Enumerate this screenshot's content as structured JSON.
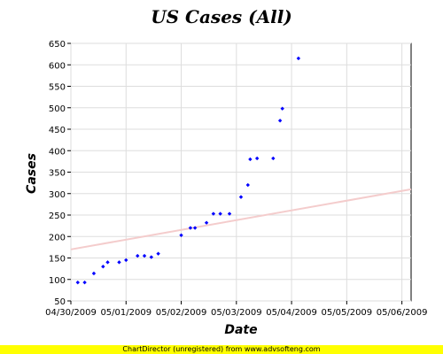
{
  "chart_data": {
    "type": "scatter",
    "title": "US Cases (All)",
    "xlabel": "Date",
    "ylabel": "Cases",
    "x_tick_labels": [
      "04/30/2009",
      "05/01/2009",
      "05/02/2009",
      "05/03/2009",
      "05/04/2009",
      "05/05/2009",
      "05/06/2009"
    ],
    "xlim": [
      "04/30/2009 00:00",
      "05/06/2009 04:00"
    ],
    "ylim": [
      50,
      650
    ],
    "y_ticks": [
      50,
      100,
      150,
      200,
      250,
      300,
      350,
      400,
      450,
      500,
      550,
      600,
      650
    ],
    "grid": true,
    "marker_color": "#0000ff",
    "trendline": {
      "color": "#f4cccc",
      "y_at_start": 170,
      "y_at_end": 310
    },
    "series": [
      {
        "points": [
          {
            "x": "04/30/2009 03:00",
            "y": 93
          },
          {
            "x": "04/30/2009 06:00",
            "y": 93
          },
          {
            "x": "04/30/2009 10:00",
            "y": 114
          },
          {
            "x": "04/30/2009 14:00",
            "y": 130
          },
          {
            "x": "04/30/2009 16:00",
            "y": 140
          },
          {
            "x": "04/30/2009 21:00",
            "y": 140
          },
          {
            "x": "05/01/2009 00:00",
            "y": 145
          },
          {
            "x": "05/01/2009 05:00",
            "y": 155
          },
          {
            "x": "05/01/2009 08:00",
            "y": 155
          },
          {
            "x": "05/01/2009 11:00",
            "y": 152
          },
          {
            "x": "05/01/2009 14:00",
            "y": 160
          },
          {
            "x": "05/02/2009 00:00",
            "y": 203
          },
          {
            "x": "05/02/2009 04:00",
            "y": 220
          },
          {
            "x": "05/02/2009 06:00",
            "y": 220
          },
          {
            "x": "05/02/2009 11:00",
            "y": 232
          },
          {
            "x": "05/02/2009 14:00",
            "y": 253
          },
          {
            "x": "05/02/2009 17:00",
            "y": 253
          },
          {
            "x": "05/02/2009 21:00",
            "y": 253
          },
          {
            "x": "05/03/2009 02:00",
            "y": 292
          },
          {
            "x": "05/03/2009 05:00",
            "y": 320
          },
          {
            "x": "05/03/2009 06:00",
            "y": 380
          },
          {
            "x": "05/03/2009 09:00",
            "y": 382
          },
          {
            "x": "05/03/2009 16:00",
            "y": 382
          },
          {
            "x": "05/03/2009 19:00",
            "y": 470
          },
          {
            "x": "05/03/2009 20:00",
            "y": 498
          },
          {
            "x": "05/04/2009 03:00",
            "y": 615
          }
        ]
      }
    ]
  },
  "footer": {
    "text": "ChartDirector (unregistered) from www.advsofteng.com",
    "color": "#ffff00"
  }
}
